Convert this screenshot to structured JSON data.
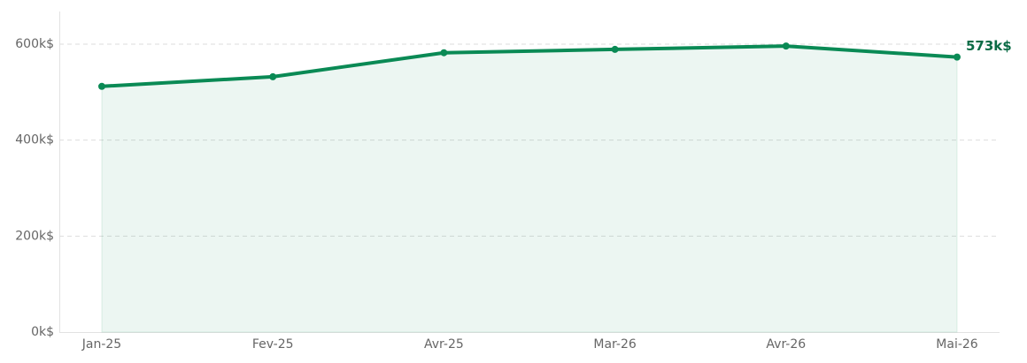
{
  "chart_data": {
    "type": "line",
    "categories": [
      "Jan-25",
      "Fev-25",
      "Avr-25",
      "Mar-26",
      "Avr-26",
      "Mai-26"
    ],
    "values": [
      512,
      532,
      582,
      589,
      596,
      573
    ],
    "value_labels": [
      null,
      null,
      null,
      null,
      null,
      "573k$"
    ],
    "color": "#0a8a55",
    "area": true,
    "ylim": [
      0,
      668
    ],
    "yticks": [
      {
        "value": 0,
        "label": "0k$"
      },
      {
        "value": 200,
        "label": "200k$"
      },
      {
        "value": 400,
        "label": "400k$"
      },
      {
        "value": 600,
        "label": "600k$"
      }
    ],
    "grid": true
  }
}
